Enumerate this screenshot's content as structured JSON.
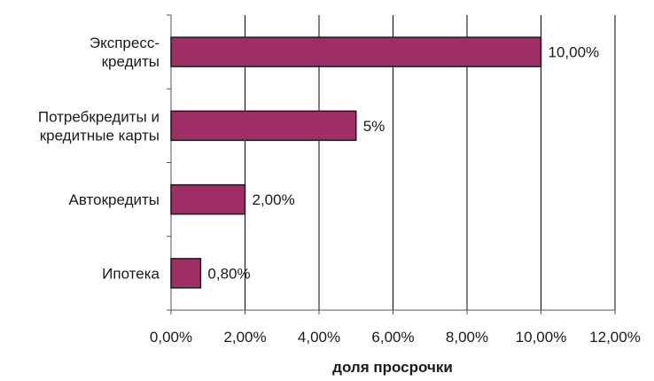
{
  "chart_data": {
    "type": "bar",
    "orientation": "horizontal",
    "categories": [
      [
        "Экспресс-",
        "кредиты"
      ],
      [
        "Потребкредиты и",
        "кредитные карты"
      ],
      [
        "Автокредиты"
      ],
      [
        "Ипотека"
      ]
    ],
    "values": [
      10.0,
      5.0,
      2.0,
      0.8
    ],
    "data_labels": [
      "10,00%",
      "5%",
      "2,00%",
      "0,80%"
    ],
    "xlim": [
      0,
      12
    ],
    "x_ticks": [
      0,
      2,
      4,
      6,
      8,
      10,
      12
    ],
    "x_tick_labels": [
      "0,00%",
      "2,00%",
      "4,00%",
      "6,00%",
      "8,00%",
      "10,00%",
      "12,00%"
    ],
    "xlabel": "доля просрочки",
    "ylabel": "",
    "title": "",
    "grid": "vertical",
    "legend": "none",
    "colors": {
      "bar_fill": "#9e2f66",
      "bar_stroke": "#1a1a1a",
      "grid": "#000000",
      "axis": "#555555"
    }
  }
}
